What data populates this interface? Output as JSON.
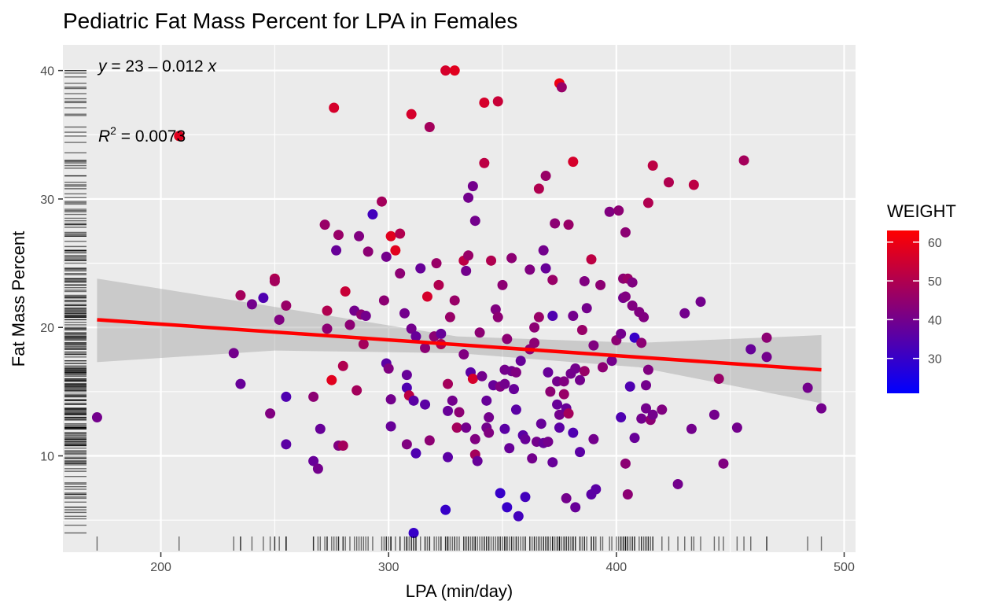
{
  "chart_data": {
    "type": "scatter",
    "title": "Pediatric Fat Mass Percent for LPA in Females",
    "xlabel": "LPA (min/day)",
    "ylabel": "Fat Mass Percent",
    "xlim": [
      157,
      505
    ],
    "ylim": [
      2.5,
      42
    ],
    "x_ticks": [
      200,
      300,
      400,
      500
    ],
    "y_ticks": [
      10,
      20,
      30,
      40
    ],
    "grid": true,
    "rug": true,
    "annotations": {
      "equation": [
        "y",
        " = 23 – 0.012 ",
        "x"
      ],
      "r_squared": [
        "R",
        "2",
        " = 0.0073"
      ]
    },
    "regression": {
      "color": "#ff0000",
      "x": [
        172,
        490
      ],
      "y": [
        20.6,
        16.7
      ],
      "ci_lower": [
        17.3,
        14.1
      ],
      "ci_upper": [
        23.8,
        19.4
      ],
      "ci_x": [
        172,
        250,
        330,
        410,
        490
      ],
      "ci_low_curve": [
        17.3,
        18.2,
        18.0,
        16.9,
        14.1
      ],
      "ci_up_curve": [
        23.8,
        21.6,
        19.3,
        18.8,
        19.4
      ]
    },
    "legend": {
      "title": "WEIGHT",
      "placement": "right",
      "min": 21,
      "max": 63,
      "low_color": "#0000ff",
      "high_color": "#ff0000",
      "ticks": [
        30,
        40,
        50,
        60
      ]
    },
    "points": [
      [
        172,
        13,
        40
      ],
      [
        208,
        34.9,
        58
      ],
      [
        232,
        18,
        40
      ],
      [
        235,
        22.5,
        48
      ],
      [
        235,
        15.6,
        38
      ],
      [
        240,
        21.8,
        40
      ],
      [
        245,
        22.3,
        34
      ],
      [
        248,
        13.3,
        42
      ],
      [
        250,
        23.8,
        50
      ],
      [
        250,
        23.6,
        48
      ],
      [
        252,
        20.6,
        42
      ],
      [
        255,
        21.7,
        46
      ],
      [
        255,
        14.6,
        34
      ],
      [
        255,
        10.9,
        36
      ],
      [
        267,
        14.6,
        44
      ],
      [
        267,
        9.6,
        38
      ],
      [
        269,
        9,
        40
      ],
      [
        270,
        12.1,
        38
      ],
      [
        272,
        28,
        46
      ],
      [
        273,
        19.9,
        44
      ],
      [
        273,
        21.3,
        50
      ],
      [
        275,
        15.9,
        58
      ],
      [
        276,
        37.1,
        56
      ],
      [
        277,
        26,
        38
      ],
      [
        278,
        27.2,
        46
      ],
      [
        278,
        10.8,
        42
      ],
      [
        280,
        17,
        50
      ],
      [
        280,
        10.8,
        48
      ],
      [
        281,
        22.8,
        54
      ],
      [
        283,
        20.2,
        44
      ],
      [
        285,
        21.3,
        40
      ],
      [
        286,
        15.1,
        48
      ],
      [
        287,
        27.1,
        42
      ],
      [
        288,
        21,
        44
      ],
      [
        289,
        18.7,
        48
      ],
      [
        290,
        20.9,
        40
      ],
      [
        291,
        25.9,
        44
      ],
      [
        293,
        28.8,
        32
      ],
      [
        297,
        29.8,
        48
      ],
      [
        298,
        22.1,
        44
      ],
      [
        299,
        17.2,
        36
      ],
      [
        299,
        25.5,
        40
      ],
      [
        300,
        16.8,
        42
      ],
      [
        301,
        27.1,
        58
      ],
      [
        301,
        12.3,
        38
      ],
      [
        301,
        14.4,
        40
      ],
      [
        303,
        26,
        58
      ],
      [
        305,
        27.3,
        50
      ],
      [
        305,
        24.2,
        44
      ],
      [
        307,
        21.1,
        40
      ],
      [
        308,
        16.3,
        38
      ],
      [
        308,
        15.3,
        34
      ],
      [
        308,
        10.9,
        42
      ],
      [
        309,
        14.7,
        52
      ],
      [
        310,
        19.9,
        40
      ],
      [
        310,
        36.6,
        56
      ],
      [
        311,
        14.3,
        36
      ],
      [
        311,
        4,
        30
      ],
      [
        312,
        19.3,
        38
      ],
      [
        312,
        10.2,
        34
      ],
      [
        314,
        24.6,
        38
      ],
      [
        316,
        18.4,
        44
      ],
      [
        316,
        14,
        36
      ],
      [
        317,
        22.4,
        56
      ],
      [
        318,
        35.6,
        48
      ],
      [
        318,
        11.2,
        44
      ],
      [
        320,
        19.3,
        44
      ],
      [
        321,
        25,
        46
      ],
      [
        322,
        23.3,
        50
      ],
      [
        323,
        18.7,
        50
      ],
      [
        323,
        19.5,
        38
      ],
      [
        325,
        40,
        56
      ],
      [
        325,
        5.8,
        30
      ],
      [
        326,
        13.5,
        38
      ],
      [
        326,
        9.9,
        36
      ],
      [
        326,
        15.6,
        48
      ],
      [
        327,
        20.8,
        46
      ],
      [
        328,
        14.3,
        40
      ],
      [
        329,
        40,
        58
      ],
      [
        329,
        22.1,
        46
      ],
      [
        330,
        12.2,
        48
      ],
      [
        331,
        13.4,
        44
      ],
      [
        333,
        25.2,
        52
      ],
      [
        333,
        17.9,
        42
      ],
      [
        334,
        24.4,
        40
      ],
      [
        334,
        12.2,
        40
      ],
      [
        335,
        25.6,
        46
      ],
      [
        335,
        30.1,
        40
      ],
      [
        336,
        16.5,
        36
      ],
      [
        337,
        16,
        56
      ],
      [
        337,
        31,
        40
      ],
      [
        338,
        11.3,
        42
      ],
      [
        338,
        28.3,
        40
      ],
      [
        338,
        10.1,
        48
      ],
      [
        339,
        9.6,
        38
      ],
      [
        340,
        19.6,
        44
      ],
      [
        341,
        16.2,
        40
      ],
      [
        342,
        37.5,
        56
      ],
      [
        342,
        32.8,
        52
      ],
      [
        343,
        12.2,
        40
      ],
      [
        343,
        14.3,
        38
      ],
      [
        344,
        11.8,
        42
      ],
      [
        344,
        13,
        40
      ],
      [
        345,
        25.2,
        50
      ],
      [
        346,
        15.5,
        38
      ],
      [
        347,
        21.4,
        42
      ],
      [
        348,
        37.6,
        54
      ],
      [
        348,
        20.8,
        44
      ],
      [
        349,
        15.4,
        42
      ],
      [
        349,
        7.1,
        30
      ],
      [
        350,
        23.3,
        44
      ],
      [
        351,
        15.6,
        40
      ],
      [
        351,
        16.7,
        40
      ],
      [
        351,
        12.1,
        36
      ],
      [
        352,
        6,
        30
      ],
      [
        352,
        19.1,
        44
      ],
      [
        353,
        10.6,
        38
      ],
      [
        354,
        16.6,
        40
      ],
      [
        354,
        25.4,
        44
      ],
      [
        355,
        15.2,
        38
      ],
      [
        356,
        13.6,
        36
      ],
      [
        356,
        16.5,
        42
      ],
      [
        357,
        5.3,
        32
      ],
      [
        358,
        17.4,
        38
      ],
      [
        359,
        11.6,
        36
      ],
      [
        360,
        6.8,
        32
      ],
      [
        360,
        11.3,
        38
      ],
      [
        362,
        24.5,
        42
      ],
      [
        362,
        18.3,
        44
      ],
      [
        363,
        9.8,
        40
      ],
      [
        364,
        18.8,
        44
      ],
      [
        364,
        20,
        44
      ],
      [
        365,
        11.1,
        40
      ],
      [
        366,
        30.8,
        50
      ],
      [
        366,
        20.8,
        46
      ],
      [
        367,
        12.5,
        38
      ],
      [
        368,
        26,
        40
      ],
      [
        368,
        11,
        38
      ],
      [
        369,
        31.8,
        46
      ],
      [
        369,
        24.6,
        38
      ],
      [
        370,
        16.5,
        38
      ],
      [
        370,
        11.1,
        40
      ],
      [
        371,
        15,
        44
      ],
      [
        372,
        23.7,
        46
      ],
      [
        372,
        20.9,
        34
      ],
      [
        372,
        9.5,
        38
      ],
      [
        373,
        28.1,
        44
      ],
      [
        374,
        15.8,
        40
      ],
      [
        374,
        14,
        38
      ],
      [
        375,
        39,
        60
      ],
      [
        375,
        13.2,
        40
      ],
      [
        375,
        12.2,
        36
      ],
      [
        376,
        38.7,
        46
      ],
      [
        377,
        15.8,
        42
      ],
      [
        377,
        14.8,
        46
      ],
      [
        378,
        13.7,
        38
      ],
      [
        378,
        6.7,
        40
      ],
      [
        379,
        28,
        46
      ],
      [
        379,
        13.3,
        48
      ],
      [
        380,
        16.4,
        40
      ],
      [
        381,
        20.9,
        40
      ],
      [
        381,
        11.8,
        34
      ],
      [
        381,
        32.9,
        56
      ],
      [
        382,
        6,
        38
      ],
      [
        382,
        16.8,
        40
      ],
      [
        384,
        15.9,
        40
      ],
      [
        384,
        10.3,
        36
      ],
      [
        385,
        19.8,
        46
      ],
      [
        386,
        23.6,
        42
      ],
      [
        386,
        16.6,
        46
      ],
      [
        387,
        21.5,
        40
      ],
      [
        389,
        25.3,
        52
      ],
      [
        389,
        7,
        36
      ],
      [
        390,
        18.6,
        42
      ],
      [
        390,
        11.3,
        40
      ],
      [
        391,
        7.4,
        36
      ],
      [
        393,
        23.3,
        44
      ],
      [
        394,
        16.9,
        44
      ],
      [
        397,
        29,
        42
      ],
      [
        398,
        17.4,
        40
      ],
      [
        400,
        19,
        44
      ],
      [
        401,
        29.1,
        44
      ],
      [
        402,
        19.5,
        40
      ],
      [
        402,
        13,
        34
      ],
      [
        403,
        22.3,
        40
      ],
      [
        403,
        23.8,
        44
      ],
      [
        404,
        22.4,
        42
      ],
      [
        404,
        27.4,
        44
      ],
      [
        404,
        9.4,
        44
      ],
      [
        405,
        23.8,
        46
      ],
      [
        405,
        7,
        44
      ],
      [
        406,
        15.4,
        34
      ],
      [
        407,
        21.7,
        42
      ],
      [
        407,
        23.5,
        42
      ],
      [
        408,
        11.4,
        38
      ],
      [
        408,
        19.2,
        30
      ],
      [
        410,
        21.2,
        42
      ],
      [
        411,
        18.8,
        44
      ],
      [
        411,
        12.9,
        40
      ],
      [
        412,
        20.8,
        42
      ],
      [
        413,
        15.5,
        40
      ],
      [
        413,
        13.7,
        40
      ],
      [
        414,
        16.7,
        42
      ],
      [
        414,
        29.7,
        50
      ],
      [
        415,
        12.8,
        44
      ],
      [
        416,
        13.2,
        40
      ],
      [
        416,
        32.6,
        52
      ],
      [
        420,
        13.6,
        42
      ],
      [
        423,
        31.3,
        50
      ],
      [
        427,
        7.8,
        40
      ],
      [
        430,
        21.1,
        40
      ],
      [
        433,
        12.1,
        40
      ],
      [
        434,
        31.1,
        52
      ],
      [
        437,
        22,
        40
      ],
      [
        443,
        13.2,
        40
      ],
      [
        445,
        16,
        46
      ],
      [
        447,
        9.4,
        42
      ],
      [
        453,
        12.2,
        40
      ],
      [
        456,
        33,
        48
      ],
      [
        459,
        18.3,
        38
      ],
      [
        466,
        19.2,
        44
      ],
      [
        466,
        17.7,
        40
      ],
      [
        484,
        15.3,
        40
      ],
      [
        490,
        13.7,
        40
      ]
    ],
    "rug_y_extra": [
      36.5,
      33,
      32.4,
      31.8,
      29.6,
      28.5,
      26.7,
      24.1,
      23.1,
      20.4,
      18.5,
      17.9,
      17.2,
      16.4,
      15.9,
      14.7,
      12.8,
      11.7,
      10.8,
      9.3,
      8.4,
      7.6,
      6.4,
      5.6,
      5.1,
      4.6,
      38.2,
      38.6,
      39.5,
      39.8,
      37.8,
      35.2,
      34.4,
      33.6,
      30.4,
      29.2,
      27.8,
      26.3,
      25.8,
      22.9,
      21.5,
      20.6,
      19.4,
      19.1,
      18.1,
      15.1,
      14.1,
      13.4,
      12.4,
      11.5,
      10.4,
      9.8,
      8.8,
      7.9
    ]
  }
}
